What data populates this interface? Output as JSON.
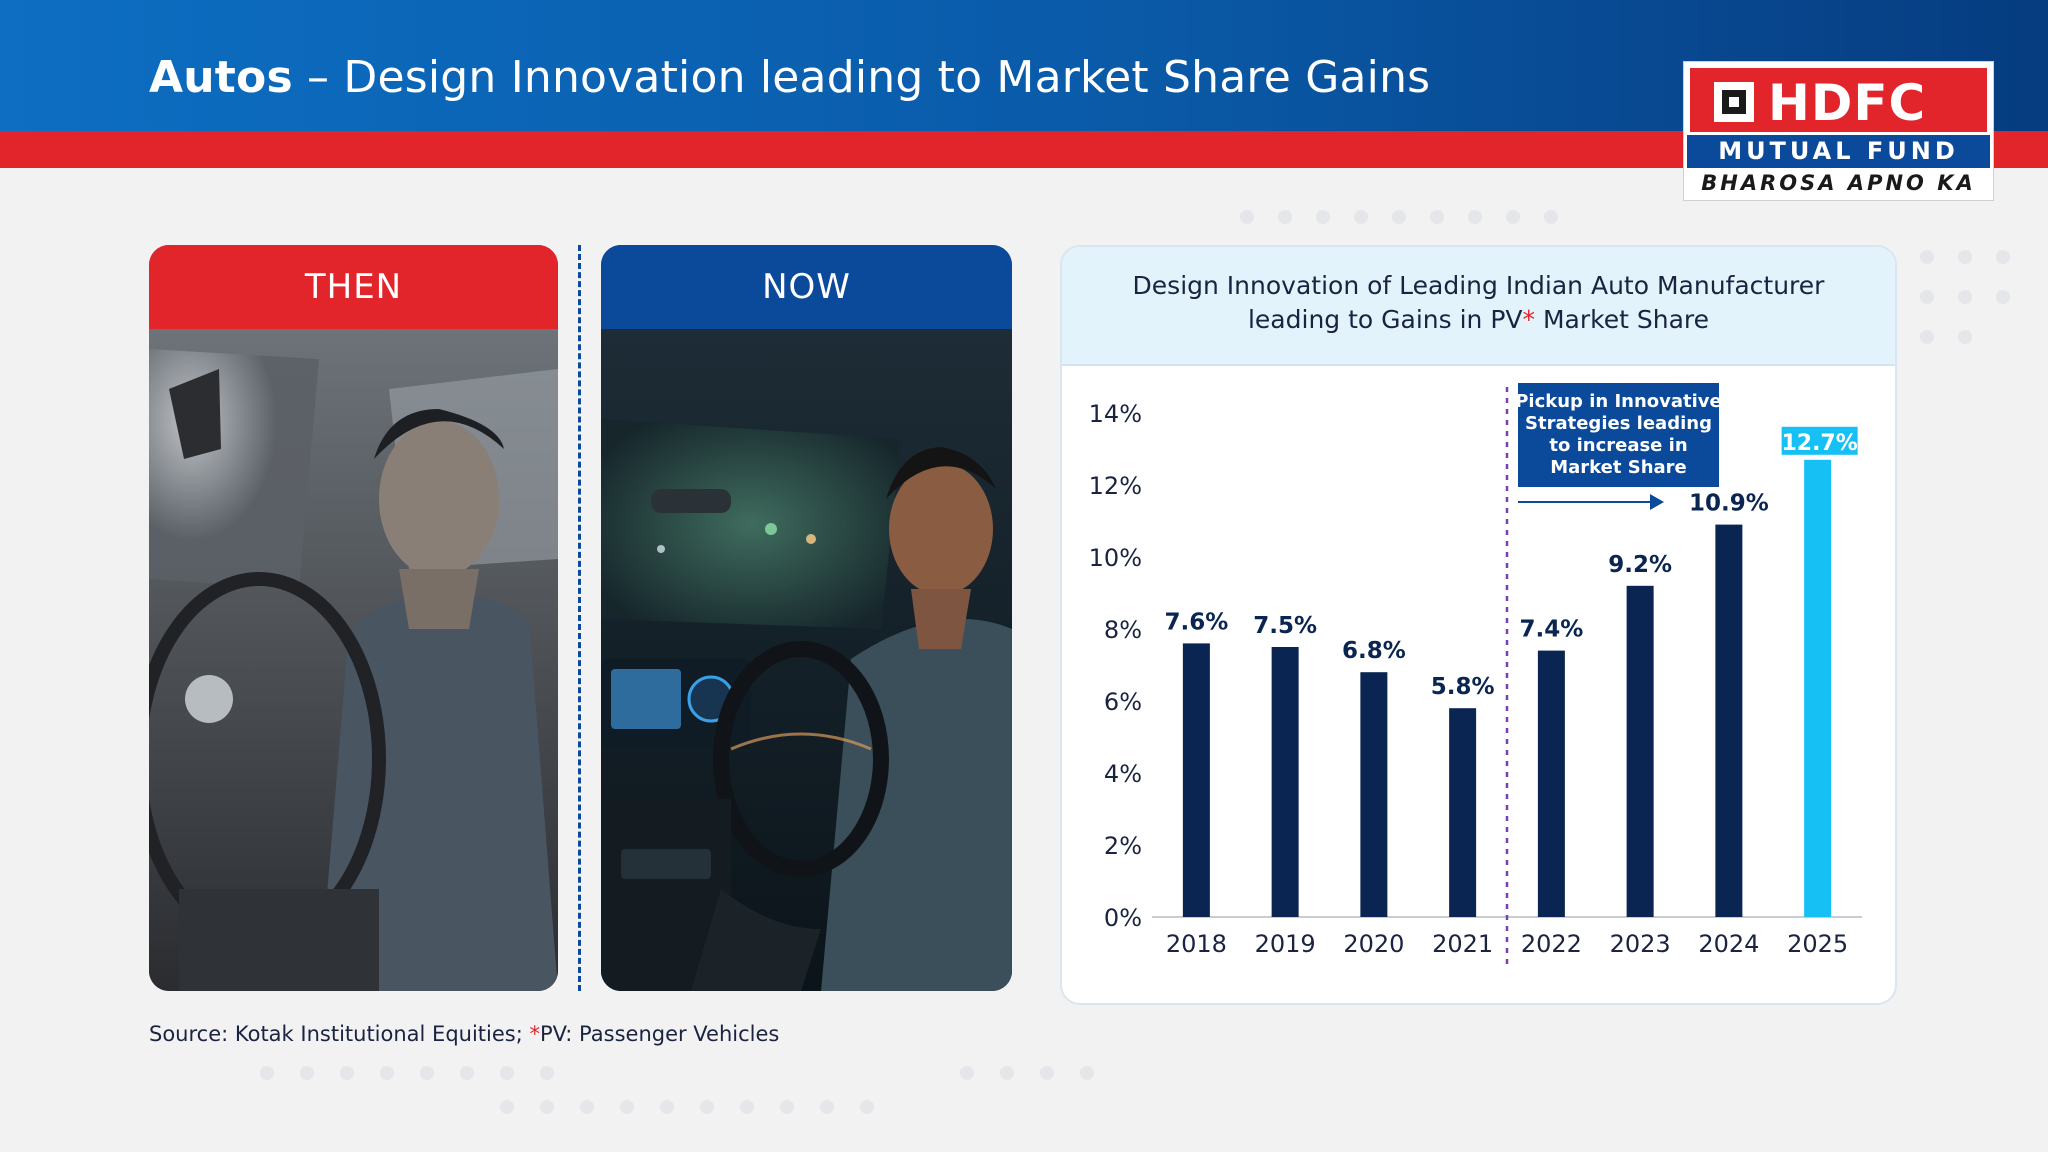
{
  "header": {
    "title_bold": "Autos",
    "title_rest": " – Design Innovation leading to Market Share Gains"
  },
  "logo": {
    "brand": "HDFC",
    "line2": "MUTUAL FUND",
    "tagline": "BHAROSA APNO KA"
  },
  "panels": {
    "then_label": "THEN",
    "now_label": "NOW"
  },
  "chart_header": {
    "line1": "Design Innovation of Leading Indian Auto Manufacturer",
    "line2_pre": "leading to Gains in PV",
    "line2_star": "*",
    "line2_post": " Market Share"
  },
  "annotation": {
    "lines": [
      "Pickup in Innovative",
      "Strategies leading",
      "to increase in",
      "Market Share"
    ]
  },
  "colors": {
    "brand_blue": "#0b4a9a",
    "brand_red": "#e1252b",
    "bar_navy": "#0a2551",
    "bar_highlight": "#17c0f4"
  },
  "source": {
    "pre": "Source: Kotak Institutional Equities; ",
    "star": "*",
    "post": "PV: Passenger Vehicles"
  },
  "chart_data": {
    "type": "bar",
    "title": "Design Innovation of Leading Indian Auto Manufacturer leading to Gains in PV* Market Share",
    "categories": [
      "2018",
      "2019",
      "2020",
      "2021",
      "2022",
      "2023",
      "2024",
      "2025"
    ],
    "values": [
      7.6,
      7.5,
      6.8,
      5.8,
      7.4,
      9.2,
      10.9,
      12.7
    ],
    "labels": [
      "7.6%",
      "7.5%",
      "6.8%",
      "5.8%",
      "7.4%",
      "9.2%",
      "10.9%",
      "12.7%"
    ],
    "highlight_index": 7,
    "yticks": [
      "0%",
      "2%",
      "4%",
      "6%",
      "8%",
      "10%",
      "12%",
      "14%"
    ],
    "ylim": [
      0,
      14
    ],
    "grid": false,
    "divider_after_category": "2021",
    "xlabel": "",
    "ylabel": ""
  }
}
